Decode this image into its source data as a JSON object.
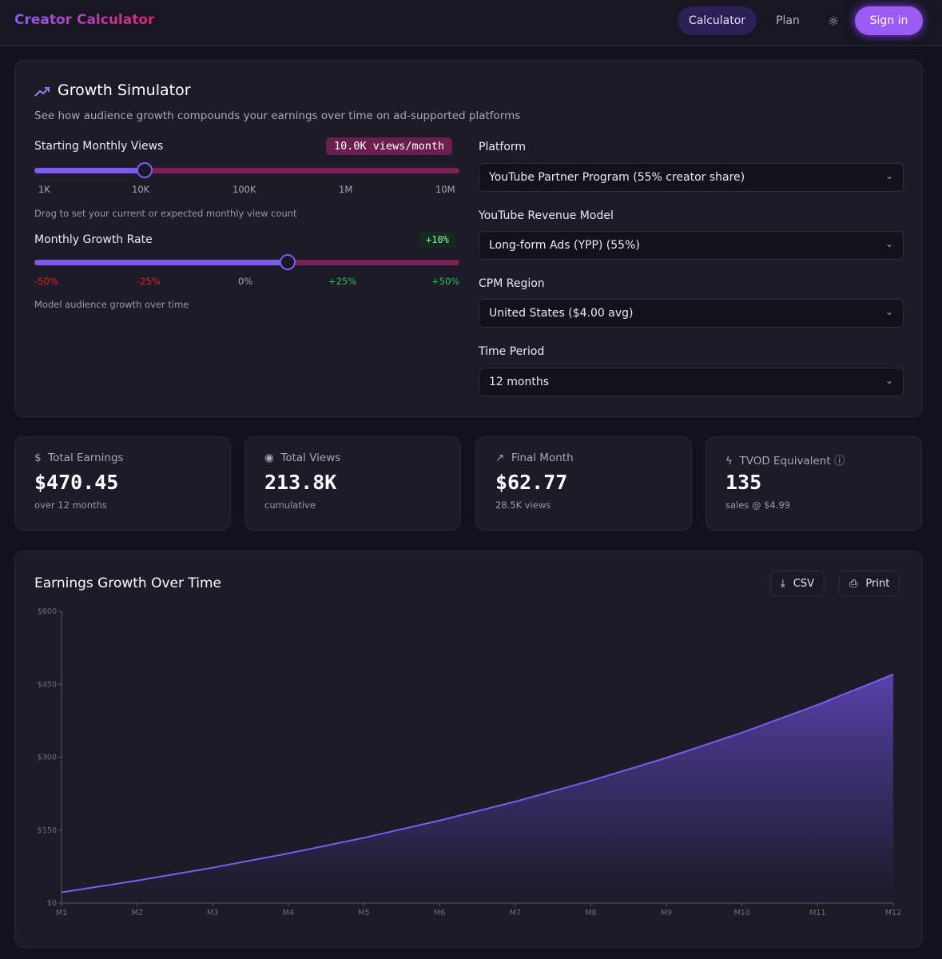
{
  "nav": {
    "logo": "Creator Calculator",
    "calculator": "Calculator",
    "plan": "Plan",
    "sign_in": "Sign in",
    "theme_icon": "sun-icon"
  },
  "simulator": {
    "title": "Growth Simulator",
    "subtitle": "See how audience growth compounds your earnings over time on ad-supported platforms",
    "views": {
      "label": "Starting Monthly Views",
      "badge": "10.0K views/month",
      "ticks": [
        "1K",
        "10K",
        "100K",
        "1M",
        "10M"
      ],
      "hint": "Drag to set your current or expected monthly view count",
      "value": 10000
    },
    "growth": {
      "label": "Monthly Growth Rate",
      "badge": "+10%",
      "ticks": [
        "-50%",
        "-25%",
        "0%",
        "+25%",
        "+50%"
      ],
      "hint": "Model audience growth over time",
      "value_percent": 10
    },
    "platform": {
      "label": "Platform",
      "value": "YouTube Partner Program (55% creator share)"
    },
    "model": {
      "label": "YouTube Revenue Model",
      "value": "Long-form Ads (YPP) (55%)"
    },
    "region": {
      "label": "CPM Region",
      "value": "United States ($4.00 avg)"
    },
    "period": {
      "label": "Time Period",
      "value": "12 months"
    }
  },
  "stats": [
    {
      "title": "Total Earnings",
      "value": "$470.45",
      "sub": "over 12 months",
      "icon": "dollar-icon"
    },
    {
      "title": "Total Views",
      "value": "213.8K",
      "sub": "cumulative",
      "icon": "eye-icon"
    },
    {
      "title": "Final Month",
      "value": "$62.77",
      "sub": "28.5K views",
      "icon": "trending-up-icon"
    },
    {
      "title": "TVOD Equivalent",
      "value": "135",
      "sub": "sales @ $4.99",
      "icon": "zap-icon"
    }
  ],
  "chart_panel": {
    "title": "Earnings Growth Over Time",
    "csv": "CSV",
    "print": "Print"
  },
  "chart_data": {
    "type": "area",
    "categories": [
      "M1",
      "M2",
      "M3",
      "M4",
      "M5",
      "M6",
      "M7",
      "M8",
      "M9",
      "M10",
      "M11",
      "M12"
    ],
    "values": [
      22.0,
      46.2,
      72.82,
      102.1,
      134.31,
      169.74,
      208.72,
      251.59,
      298.75,
      350.62,
      407.69,
      470.45
    ],
    "yticks": [
      "$0",
      "$150",
      "$300",
      "$450",
      "$600"
    ],
    "ylim": [
      0,
      600
    ],
    "color": "#7c5cf0"
  }
}
